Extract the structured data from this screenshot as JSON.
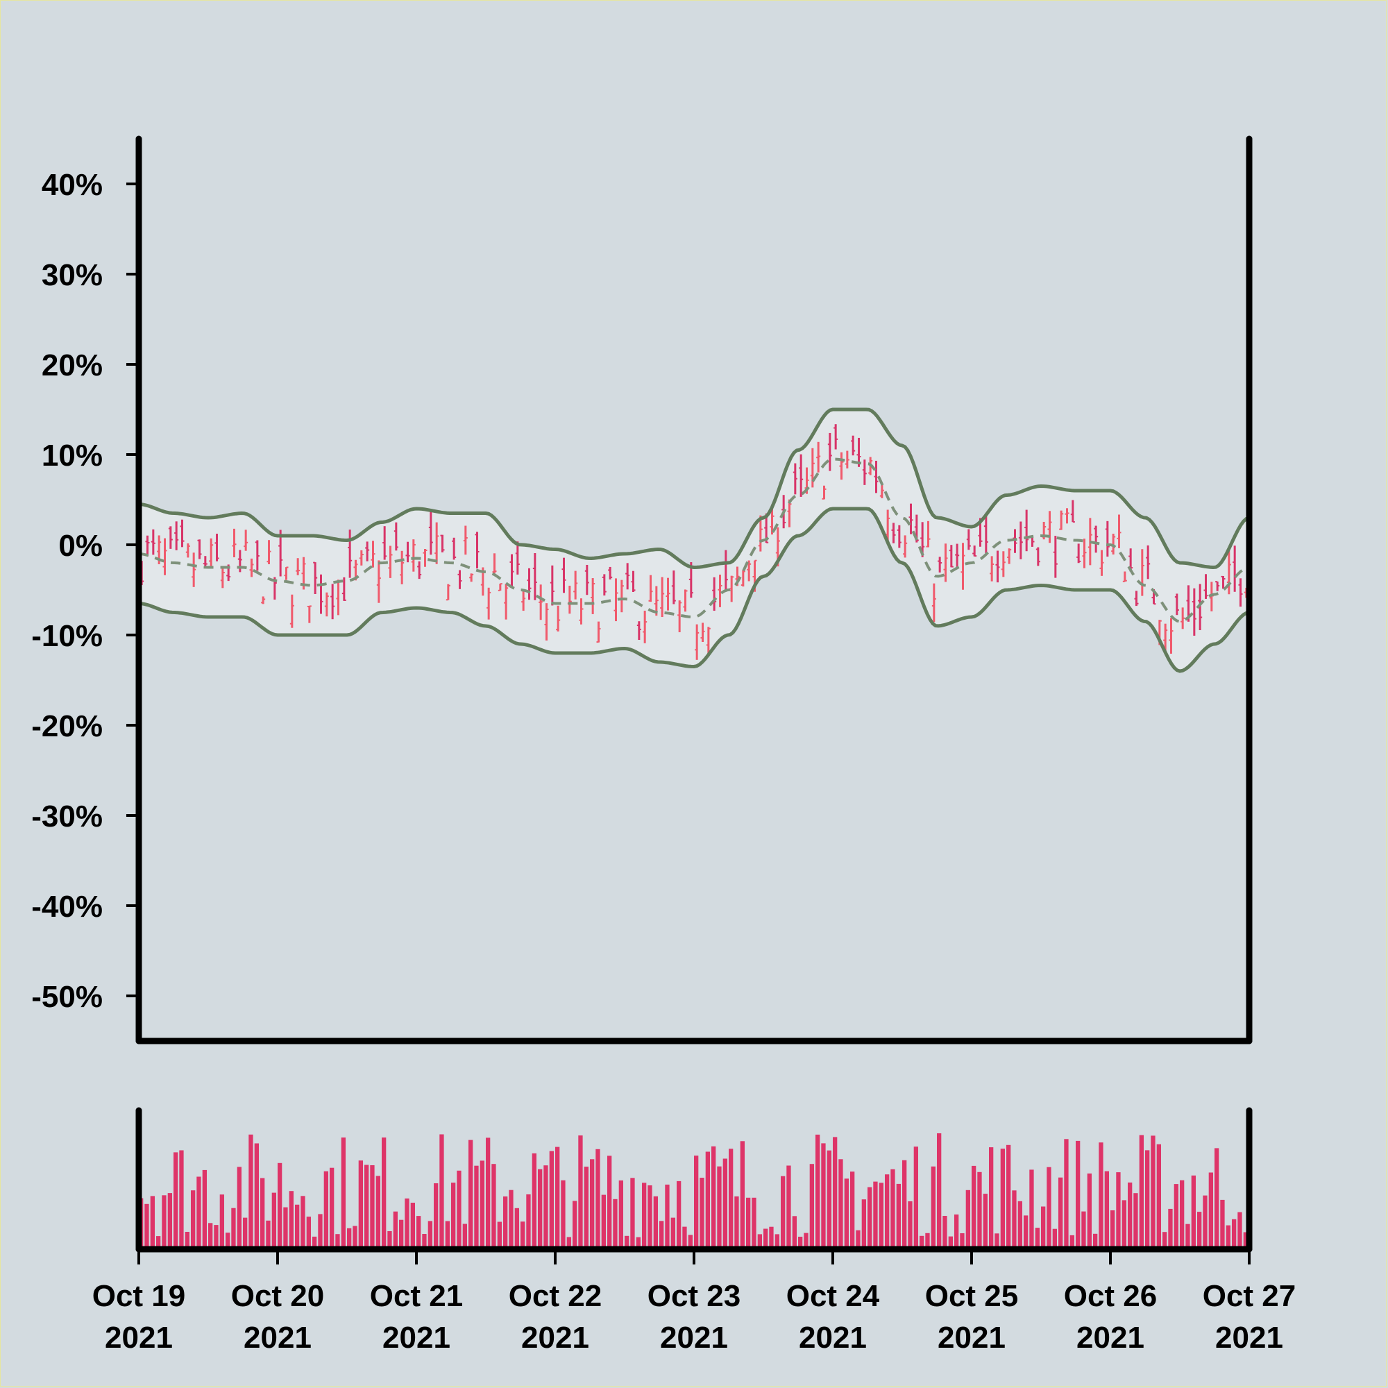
{
  "chart_data": {
    "type": "ohlc",
    "title": "",
    "xlabel": "",
    "ylabel": "",
    "ylim": [
      -55,
      45
    ],
    "y_ticks": [
      "40%",
      "30%",
      "20%",
      "10%",
      "0%",
      "-10%",
      "-20%",
      "-30%",
      "-40%",
      "-50%"
    ],
    "y_tick_values": [
      40,
      30,
      20,
      10,
      0,
      -10,
      -20,
      -30,
      -40,
      -50
    ],
    "x_ticks": [
      {
        "month_day": "Oct 19",
        "year": "2021"
      },
      {
        "month_day": "Oct 20",
        "year": "2021"
      },
      {
        "month_day": "Oct 21",
        "year": "2021"
      },
      {
        "month_day": "Oct 22",
        "year": "2021"
      },
      {
        "month_day": "Oct 23",
        "year": "2021"
      },
      {
        "month_day": "Oct 24",
        "year": "2021"
      },
      {
        "month_day": "Oct 25",
        "year": "2021"
      },
      {
        "month_day": "Oct 26",
        "year": "2021"
      },
      {
        "month_day": "Oct 27",
        "year": "2021"
      }
    ],
    "xlim": [
      "2021-10-19",
      "2021-10-27"
    ],
    "grid": false,
    "bollinger_bands": {
      "x_days": [
        0,
        0.25,
        0.5,
        0.75,
        1,
        1.25,
        1.5,
        1.75,
        2,
        2.25,
        2.5,
        2.75,
        3,
        3.25,
        3.5,
        3.75,
        4,
        4.25,
        4.5,
        4.75,
        5,
        5.25,
        5.5,
        5.75,
        6,
        6.25,
        6.5,
        6.75,
        7,
        7.25,
        7.5,
        7.75,
        8
      ],
      "upper": [
        4.5,
        3.5,
        3,
        3.5,
        1,
        1,
        0.5,
        2.5,
        4,
        3.5,
        3.5,
        0,
        -0.5,
        -1.5,
        -1,
        -0.5,
        -2.5,
        -2,
        3,
        10.5,
        15,
        15,
        11,
        3,
        2,
        5.5,
        6.5,
        6,
        6,
        3,
        -2,
        -2.5,
        3
      ],
      "middle": [
        -1,
        -2,
        -2.5,
        -2.5,
        -4,
        -4.5,
        -4,
        -2,
        -1.5,
        -2,
        -3,
        -5,
        -6.5,
        -6.5,
        -6,
        -7.5,
        -8,
        -5,
        0.5,
        5.5,
        9.5,
        9,
        3,
        -3.5,
        -2,
        0.5,
        1,
        0.5,
        0,
        -4.5,
        -8.5,
        -5.5,
        -2.5
      ],
      "lower": [
        -6.5,
        -7.5,
        -8,
        -8,
        -10,
        -10,
        -10,
        -7.5,
        -7,
        -7.5,
        -9,
        -11,
        -12,
        -12,
        -11.5,
        -13,
        -13.5,
        -10,
        -3.5,
        1,
        4,
        4,
        -2,
        -9,
        -8,
        -5,
        -4.5,
        -5,
        -5,
        -8.5,
        -14,
        -11,
        -7.5
      ]
    },
    "ohlc": {
      "bars_per_day": 24,
      "approx_range_pct": [
        -16,
        14
      ]
    },
    "volume": {
      "bars_per_day": 24,
      "y_axis_visible": false
    },
    "colors": {
      "background": "#d3dbe0",
      "band_line": "#627b5c",
      "band_fill": "#e4e9eb",
      "middle_line": "#7e917a",
      "bar_up": "#f05a6c",
      "bar_down": "#d83468",
      "volume": "#de3468",
      "axis": "#000000"
    }
  }
}
